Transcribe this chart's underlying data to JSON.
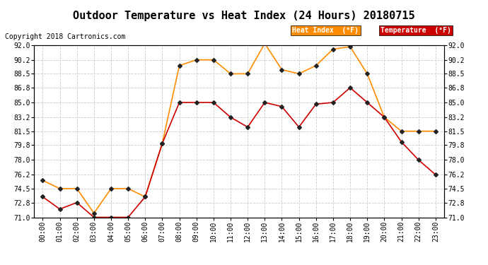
{
  "title": "Outdoor Temperature vs Heat Index (24 Hours) 20180715",
  "copyright": "Copyright 2018 Cartronics.com",
  "background_color": "#ffffff",
  "plot_bg_color": "#ffffff",
  "grid_color": "#cccccc",
  "hours": [
    "00:00",
    "01:00",
    "02:00",
    "03:00",
    "04:00",
    "05:00",
    "06:00",
    "07:00",
    "08:00",
    "09:00",
    "10:00",
    "11:00",
    "12:00",
    "13:00",
    "14:00",
    "15:00",
    "16:00",
    "17:00",
    "18:00",
    "19:00",
    "20:00",
    "21:00",
    "22:00",
    "23:00"
  ],
  "heat_index": [
    75.5,
    74.5,
    74.5,
    71.5,
    74.5,
    74.5,
    73.5,
    80.0,
    89.5,
    90.2,
    90.2,
    88.5,
    88.5,
    92.2,
    89.0,
    88.5,
    89.5,
    91.5,
    91.8,
    88.5,
    83.2,
    81.5,
    81.5,
    81.5
  ],
  "temperature": [
    73.5,
    72.0,
    72.8,
    71.0,
    71.0,
    71.0,
    73.5,
    80.0,
    85.0,
    85.0,
    85.0,
    83.2,
    82.0,
    85.0,
    84.5,
    82.0,
    84.8,
    85.0,
    86.8,
    85.0,
    83.2,
    80.2,
    78.0,
    76.2
  ],
  "heat_index_color": "#ff8c00",
  "temperature_color": "#cc0000",
  "marker_color": "#222222",
  "ylim_min": 71.0,
  "ylim_max": 92.0,
  "yticks": [
    71.0,
    72.8,
    74.5,
    76.2,
    78.0,
    79.8,
    81.5,
    83.2,
    85.0,
    86.8,
    88.5,
    90.2,
    92.0
  ],
  "title_fontsize": 11,
  "copyright_fontsize": 7,
  "tick_fontsize": 7,
  "legend_heat_index_bg": "#ff8c00",
  "legend_temp_bg": "#cc0000",
  "legend_text_color": "#ffffff",
  "legend_heat_label": "Heat Index  (°F)",
  "legend_temp_label": "Temperature  (°F)"
}
